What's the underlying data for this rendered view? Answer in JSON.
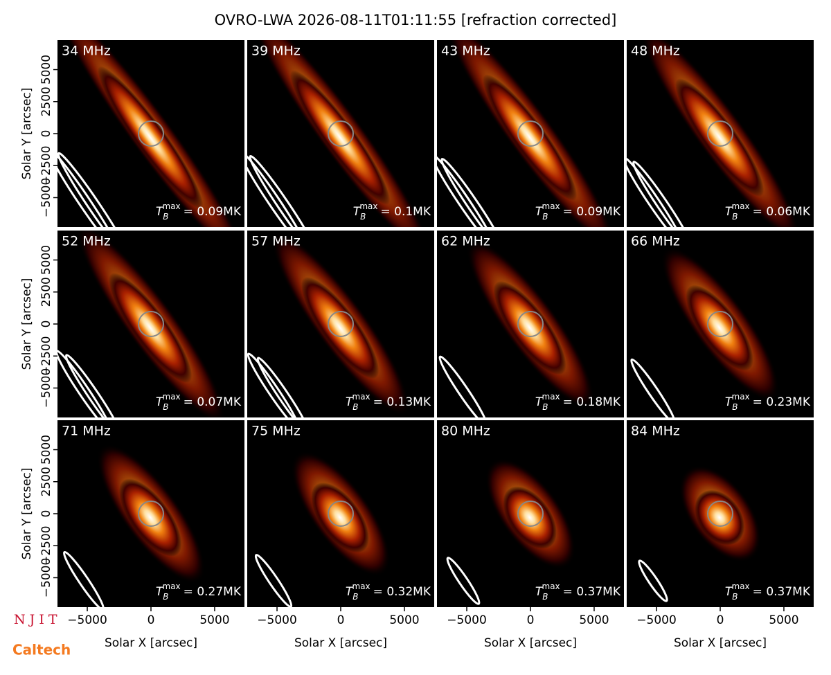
{
  "title": "OVRO-LWA 2026-08-11T01:11:55 [refraction corrected]",
  "logos": [
    "N J I T",
    "Caltech"
  ],
  "chart_data": [
    {
      "type": "image",
      "label": "34 MHz",
      "annotation": {
        "base": "T",
        "sub": "B",
        "sup": "max",
        "text": "= 0.09MK"
      },
      "xlim": [
        -7340,
        7340
      ],
      "ylim": [
        -7300,
        7300
      ],
      "ylabel": "Solar Y [arcsec]",
      "yticks": [
        {
          "value": -5000,
          "label": "−5000"
        },
        {
          "value": -2500,
          "label": "−2500"
        },
        0,
        2500,
        5000
      ]
    },
    {
      "type": "image",
      "label": "39 MHz",
      "annotation": {
        "base": "T",
        "sub": "B",
        "sup": "max",
        "text": "= 0.1MK"
      },
      "xlim": [
        -7340,
        7340
      ],
      "ylim": [
        -7300,
        7300
      ]
    },
    {
      "type": "image",
      "label": "43 MHz",
      "annotation": {
        "base": "T",
        "sub": "B",
        "sup": "max",
        "text": "= 0.09MK"
      },
      "xlim": [
        -7340,
        7340
      ],
      "ylim": [
        -7300,
        7300
      ]
    },
    {
      "type": "image",
      "label": "48 MHz",
      "annotation": {
        "base": "T",
        "sub": "B",
        "sup": "max",
        "text": "= 0.06MK"
      },
      "xlim": [
        -7340,
        7340
      ],
      "ylim": [
        -7300,
        7300
      ]
    },
    {
      "type": "image",
      "label": "52 MHz",
      "annotation": {
        "base": "T",
        "sub": "B",
        "sup": "max",
        "text": "= 0.07MK"
      },
      "xlim": [
        -7340,
        7340
      ],
      "ylim": [
        -7300,
        7300
      ],
      "ylabel": "Solar Y [arcsec]",
      "yticks": [
        {
          "value": -5000,
          "label": "−5000"
        },
        {
          "value": -2500,
          "label": "−2500"
        },
        0,
        2500,
        5000
      ]
    },
    {
      "type": "image",
      "label": "57 MHz",
      "annotation": {
        "base": "T",
        "sub": "B",
        "sup": "max",
        "text": "= 0.13MK"
      },
      "xlim": [
        -7340,
        7340
      ],
      "ylim": [
        -7300,
        7300
      ]
    },
    {
      "type": "image",
      "label": "62 MHz",
      "annotation": {
        "base": "T",
        "sub": "B",
        "sup": "max",
        "text": "= 0.18MK"
      },
      "xlim": [
        -7340,
        7340
      ],
      "ylim": [
        -7300,
        7300
      ]
    },
    {
      "type": "image",
      "label": "66 MHz",
      "annotation": {
        "base": "T",
        "sub": "B",
        "sup": "max",
        "text": "= 0.23MK"
      },
      "xlim": [
        -7340,
        7340
      ],
      "ylim": [
        -7300,
        7300
      ]
    },
    {
      "type": "image",
      "label": "71 MHz",
      "annotation": {
        "base": "T",
        "sub": "B",
        "sup": "max",
        "text": "= 0.27MK"
      },
      "xlim": [
        -7340,
        7340
      ],
      "ylim": [
        -7300,
        7300
      ],
      "ylabel": "Solar Y [arcsec]",
      "yticks": [
        {
          "value": -5000,
          "label": "−5000"
        },
        {
          "value": -2500,
          "label": "−2500"
        },
        0,
        2500,
        5000
      ],
      "xlabel": "Solar X [arcsec]",
      "xticks": [
        {
          "value": -5000,
          "label": "−5000"
        },
        0,
        5000
      ]
    },
    {
      "type": "image",
      "label": "75 MHz",
      "annotation": {
        "base": "T",
        "sub": "B",
        "sup": "max",
        "text": "= 0.32MK"
      },
      "xlim": [
        -7340,
        7340
      ],
      "ylim": [
        -7300,
        7300
      ],
      "xlabel": "Solar X [arcsec]",
      "xticks": [
        {
          "value": -5000,
          "label": "−5000"
        },
        0,
        5000
      ]
    },
    {
      "type": "image",
      "label": "80 MHz",
      "annotation": {
        "base": "T",
        "sub": "B",
        "sup": "max",
        "text": "= 0.37MK"
      },
      "xlim": [
        -7340,
        7340
      ],
      "ylim": [
        -7300,
        7300
      ],
      "xlabel": "Solar X [arcsec]",
      "xticks": [
        {
          "value": -5000,
          "label": "−5000"
        },
        0,
        5000
      ]
    },
    {
      "type": "image",
      "label": "84 MHz",
      "annotation": {
        "base": "T",
        "sub": "B",
        "sup": "max",
        "text": "= 0.37MK"
      },
      "xlim": [
        -7340,
        7340
      ],
      "ylim": [
        -7300,
        7300
      ],
      "xlabel": "Solar X [arcsec]",
      "xticks": [
        {
          "value": -5000,
          "label": "−5000"
        },
        0,
        5000
      ]
    }
  ]
}
